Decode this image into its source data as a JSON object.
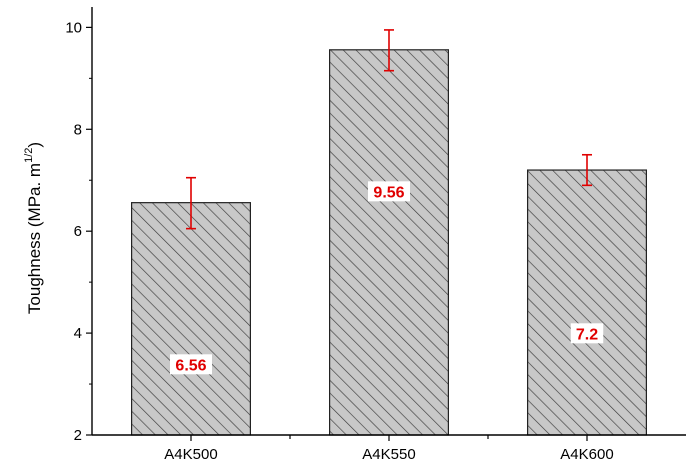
{
  "chart_data": {
    "type": "bar",
    "categories": [
      "A4K500",
      "A4K550",
      "A4K600"
    ],
    "values": [
      6.56,
      9.56,
      7.2
    ],
    "value_labels": [
      "6.56",
      "9.56",
      "7.2"
    ],
    "error_bars": {
      "lower": [
        6.05,
        9.15,
        6.9
      ],
      "upper": [
        7.05,
        9.95,
        7.5
      ]
    },
    "title": "",
    "xlabel": "",
    "ylabel": {
      "text": "Toughness (MPa. m",
      "superscript": "1/2",
      "suffix": ")"
    },
    "ylim": [
      2,
      10.4
    ],
    "yticks": [
      2,
      4,
      6,
      8,
      10
    ],
    "grid": false,
    "legend": "none",
    "colors": {
      "bar_fill": "#c8c8c8",
      "bar_hatch": "#3a3a3a",
      "bar_edge": "#222222",
      "error_bar": "#e00000",
      "value_label": "#e00000",
      "value_label_bg": "#ffffff",
      "axis": "#000000"
    }
  }
}
